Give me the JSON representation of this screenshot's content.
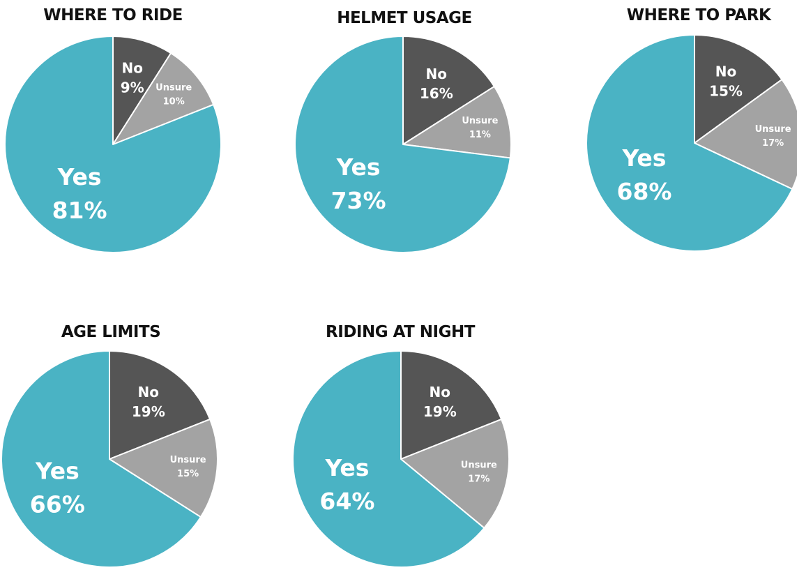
{
  "chart_data": [
    {
      "type": "pie",
      "title": "WHERE TO RIDE",
      "slices": [
        {
          "label": "No",
          "value": 9,
          "display": "9%",
          "color": "#555555"
        },
        {
          "label": "Unsure",
          "value": 10,
          "display": "10%",
          "color": "#a3a3a3"
        },
        {
          "label": "Yes",
          "value": 81,
          "display": "81%",
          "color": "#4ab3c4"
        }
      ]
    },
    {
      "type": "pie",
      "title": "HELMET USAGE",
      "slices": [
        {
          "label": "No",
          "value": 16,
          "display": "16%",
          "color": "#555555"
        },
        {
          "label": "Unsure",
          "value": 11,
          "display": "11%",
          "color": "#a3a3a3"
        },
        {
          "label": "Yes",
          "value": 73,
          "display": "73%",
          "color": "#4ab3c4"
        }
      ]
    },
    {
      "type": "pie",
      "title": "WHERE TO PARK",
      "slices": [
        {
          "label": "No",
          "value": 15,
          "display": "15%",
          "color": "#555555"
        },
        {
          "label": "Unsure",
          "value": 17,
          "display": "17%",
          "color": "#a3a3a3"
        },
        {
          "label": "Yes",
          "value": 68,
          "display": "68%",
          "color": "#4ab3c4"
        }
      ]
    },
    {
      "type": "pie",
      "title": "AGE LIMITS",
      "slices": [
        {
          "label": "No",
          "value": 19,
          "display": "19%",
          "color": "#555555"
        },
        {
          "label": "Unsure",
          "value": 15,
          "display": "15%",
          "color": "#a3a3a3"
        },
        {
          "label": "Yes",
          "value": 66,
          "display": "66%",
          "color": "#4ab3c4"
        }
      ]
    },
    {
      "type": "pie",
      "title": "RIDING AT NIGHT",
      "slices": [
        {
          "label": "No",
          "value": 19,
          "display": "19%",
          "color": "#555555"
        },
        {
          "label": "Unsure",
          "value": 17,
          "display": "17%",
          "color": "#a3a3a3"
        },
        {
          "label": "Yes",
          "value": 64,
          "display": "64%",
          "color": "#4ab3c4"
        }
      ]
    }
  ]
}
